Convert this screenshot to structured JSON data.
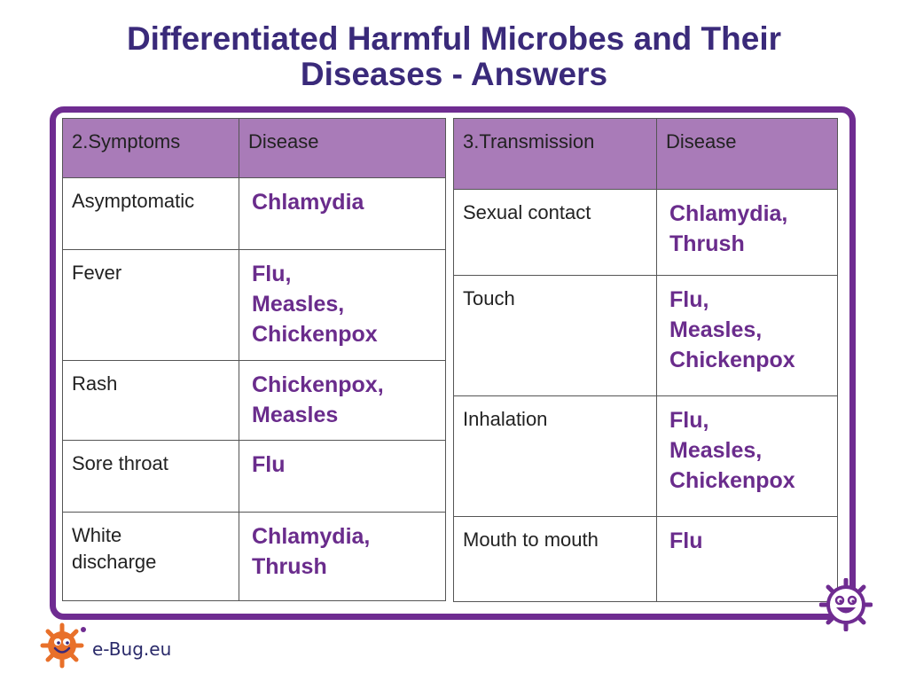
{
  "title": {
    "line1": "Differentiated Harmful Microbes and Their",
    "line2": "Diseases - Answers"
  },
  "symptoms_table": {
    "headers": [
      "2.Symptoms",
      "Disease"
    ],
    "rows": [
      {
        "label": [
          "Asymptomatic"
        ],
        "answer": [
          "Chlamydia"
        ]
      },
      {
        "label": [
          "Fever"
        ],
        "answer": [
          "Flu,",
          "Measles,",
          "Chickenpox"
        ]
      },
      {
        "label": [
          "Rash"
        ],
        "answer": [
          "Chickenpox,",
          "Measles"
        ]
      },
      {
        "label": [
          "Sore throat"
        ],
        "answer": [
          "Flu"
        ]
      },
      {
        "label": [
          "White",
          "discharge"
        ],
        "answer": [
          "Chlamydia,",
          "Thrush"
        ]
      }
    ]
  },
  "transmission_table": {
    "headers": [
      "3.Transmission",
      "Disease"
    ],
    "rows": [
      {
        "label": [
          "Sexual contact"
        ],
        "answer": [
          "Chlamydia,",
          "Thrush"
        ]
      },
      {
        "label": [
          "Touch"
        ],
        "answer": [
          "Flu,",
          "Measles,",
          "Chickenpox"
        ]
      },
      {
        "label": [
          "Inhalation"
        ],
        "answer": [
          "Flu,",
          "Measles,",
          "Chickenpox"
        ]
      },
      {
        "label": [
          "Mouth to mouth"
        ],
        "answer": [
          "Flu"
        ]
      }
    ]
  },
  "footer": {
    "brand": "e-Bug.eu",
    "logo_icon": "ebug-microbe-logo-icon",
    "corner_icon": "ebug-smiley-microbe-icon"
  },
  "colors": {
    "title": "#3a2a7a",
    "frame": "#6f2c91",
    "header_fill": "#a97bb8",
    "answer_text": "#6a2c8c",
    "logo_orange": "#e8702a"
  }
}
